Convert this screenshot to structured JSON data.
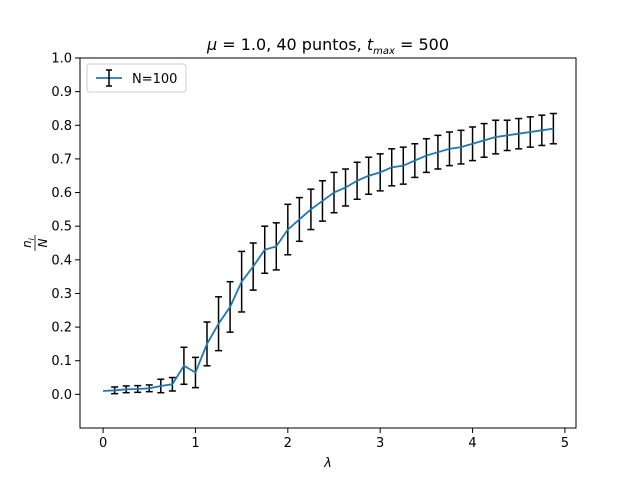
{
  "chart_data": {
    "type": "line",
    "title": {
      "mu_symbol": "μ",
      "mu_part": " = 1.0, 40 puntos, ",
      "t_symbol": "t",
      "t_subscript": "max",
      "t_part": " = 500"
    },
    "xlabel": "λ",
    "ylabel": {
      "numerator": "n",
      "numerator_subscript": "i",
      "denominator": "N"
    },
    "xlim": [
      -0.25,
      5.12
    ],
    "ylim": [
      -0.1,
      1.0
    ],
    "x_ticks": [
      0,
      1,
      2,
      3,
      4,
      5
    ],
    "y_ticks": [
      0.0,
      0.1,
      0.2,
      0.3,
      0.4,
      0.5,
      0.6,
      0.7,
      0.8,
      0.9,
      1.0
    ],
    "x_tick_labels": [
      "0",
      "1",
      "2",
      "3",
      "4",
      "5"
    ],
    "y_tick_labels": [
      "0.0",
      "0.1",
      "0.2",
      "0.3",
      "0.4",
      "0.5",
      "0.6",
      "0.7",
      "0.8",
      "0.9",
      "1.0"
    ],
    "grid": false,
    "legend_position": "top-left",
    "colors": {
      "line": "#1f77b4",
      "errorbar": "#000000"
    },
    "series": [
      {
        "name": "N=100",
        "x": [
          0.0,
          0.125,
          0.25,
          0.375,
          0.5,
          0.625,
          0.75,
          0.875,
          1.0,
          1.125,
          1.25,
          1.375,
          1.5,
          1.625,
          1.75,
          1.875,
          2.0,
          2.125,
          2.25,
          2.375,
          2.5,
          2.625,
          2.75,
          2.875,
          3.0,
          3.125,
          3.25,
          3.375,
          3.5,
          3.625,
          3.75,
          3.875,
          4.0,
          4.125,
          4.25,
          4.375,
          4.5,
          4.625,
          4.75,
          4.875
        ],
        "y": [
          0.01,
          0.012,
          0.015,
          0.016,
          0.018,
          0.025,
          0.03,
          0.085,
          0.065,
          0.15,
          0.21,
          0.26,
          0.335,
          0.38,
          0.43,
          0.44,
          0.49,
          0.52,
          0.55,
          0.575,
          0.6,
          0.615,
          0.635,
          0.65,
          0.66,
          0.675,
          0.68,
          0.695,
          0.71,
          0.72,
          0.73,
          0.735,
          0.745,
          0.755,
          0.765,
          0.77,
          0.775,
          0.78,
          0.785,
          0.79
        ],
        "yerr": [
          0.0,
          0.01,
          0.01,
          0.01,
          0.01,
          0.02,
          0.02,
          0.055,
          0.045,
          0.065,
          0.08,
          0.075,
          0.09,
          0.07,
          0.07,
          0.07,
          0.075,
          0.065,
          0.06,
          0.06,
          0.06,
          0.055,
          0.055,
          0.055,
          0.055,
          0.055,
          0.055,
          0.05,
          0.05,
          0.05,
          0.05,
          0.05,
          0.05,
          0.05,
          0.05,
          0.045,
          0.045,
          0.045,
          0.045,
          0.045
        ]
      }
    ]
  }
}
